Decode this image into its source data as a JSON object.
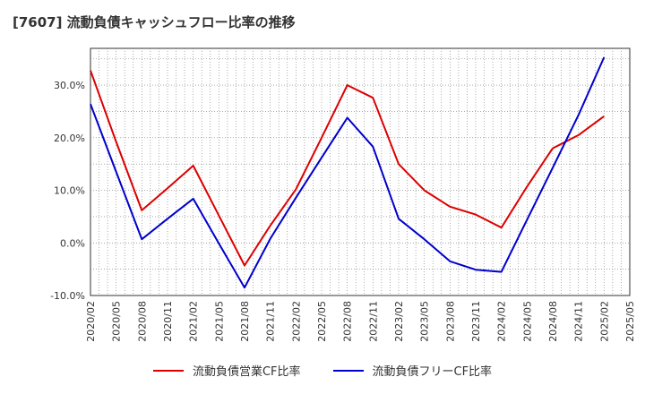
{
  "title": "[7607]  流動負債キャッシュフロー比率の推移",
  "chart_data": {
    "type": "line",
    "title": "[7607]  流動負債キャッシュフロー比率の推移",
    "xlabel": "",
    "ylabel": "",
    "x_ticks": [
      "2020/02",
      "2020/05",
      "2020/08",
      "2020/11",
      "2021/02",
      "2021/05",
      "2021/08",
      "2021/11",
      "2022/02",
      "2022/05",
      "2022/08",
      "2022/11",
      "2023/02",
      "2023/05",
      "2023/08",
      "2023/11",
      "2024/02",
      "2024/05",
      "2024/08",
      "2024/11",
      "2025/02",
      "2025/05"
    ],
    "y_ticks": [
      "-10.0%",
      "0.0%",
      "10.0%",
      "20.0%",
      "30.0%"
    ],
    "y_tick_values": [
      -10,
      0,
      10,
      20,
      30
    ],
    "ylim": [
      -10,
      37
    ],
    "grid": true,
    "legend_position": "bottom",
    "series": [
      {
        "name": "流動負債営業CF比率",
        "color": "#dd0000",
        "x": [
          "2020/02",
          "2020/05",
          "2020/08",
          "2020/11",
          "2021/02",
          "2021/05",
          "2021/08",
          "2021/11",
          "2022/02",
          "2022/05",
          "2022/08",
          "2022/11",
          "2023/02",
          "2023/05",
          "2023/08",
          "2023/11",
          "2024/02",
          "2024/05",
          "2024/08",
          "2024/11",
          "2025/02"
        ],
        "values": [
          32.8,
          19.2,
          6.2,
          10.4,
          14.7,
          5.2,
          -4.3,
          3.3,
          10.2,
          20.0,
          30.0,
          27.6,
          15.0,
          10.0,
          6.9,
          5.4,
          2.9,
          10.7,
          18.0,
          20.5,
          24.1
        ]
      },
      {
        "name": "流動負債フリーCF比率",
        "color": "#0000cc",
        "x": [
          "2020/02",
          "2020/05",
          "2020/08",
          "2020/11",
          "2021/02",
          "2021/05",
          "2021/08",
          "2021/11",
          "2022/02",
          "2022/05",
          "2022/08",
          "2022/11",
          "2023/02",
          "2023/05",
          "2023/08",
          "2023/11",
          "2024/02",
          "2024/05",
          "2024/08",
          "2024/11",
          "2025/02"
        ],
        "values": [
          26.4,
          13.5,
          0.7,
          4.6,
          8.4,
          -0.1,
          -8.5,
          0.8,
          8.6,
          16.2,
          23.8,
          18.3,
          4.6,
          0.7,
          -3.5,
          -5.1,
          -5.5,
          4.4,
          14.3,
          24.3,
          35.3
        ]
      }
    ]
  }
}
